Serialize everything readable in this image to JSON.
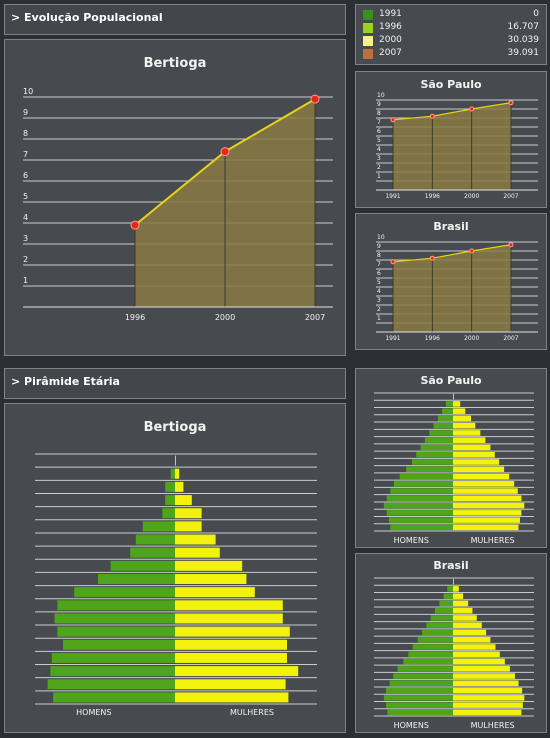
{
  "sections": {
    "evolucao": "> Evolução Populacional",
    "piramide": "> Pirâmide Etária"
  },
  "legend": [
    {
      "year": "1991",
      "value": "0",
      "color": "#3a8f1f"
    },
    {
      "year": "1996",
      "value": "16.707",
      "color": "#9ad41a"
    },
    {
      "year": "2000",
      "value": "30.039",
      "color": "#f5f28a"
    },
    {
      "year": "2007",
      "value": "39.091",
      "color": "#b8703d"
    }
  ],
  "colors": {
    "area": "#8a7a43",
    "line": "#e6d21a",
    "marker": "#e8261a",
    "homens": "#4ea51a",
    "mulheres": "#f2f20d"
  },
  "chart_data": [
    {
      "type": "area",
      "title": "Bertioga",
      "categories": [
        "1996",
        "2000",
        "2007"
      ],
      "values": [
        3.9,
        7.4,
        9.9
      ],
      "ylim": [
        0,
        10
      ],
      "yticks": [
        "1",
        "2",
        "3",
        "4",
        "5",
        "6",
        "7",
        "8",
        "9",
        "10"
      ]
    },
    {
      "type": "area",
      "title": "São Paulo",
      "categories": [
        "1991",
        "1996",
        "2000",
        "2007"
      ],
      "values": [
        7.8,
        8.2,
        9.0,
        9.7
      ],
      "ylim": [
        0,
        10
      ],
      "yticks": [
        "1",
        "2",
        "3",
        "4",
        "5",
        "6",
        "7",
        "8",
        "9",
        "10"
      ]
    },
    {
      "type": "area",
      "title": "Brasil",
      "categories": [
        "1991",
        "1996",
        "2000",
        "2007"
      ],
      "values": [
        7.8,
        8.2,
        9.0,
        9.7
      ],
      "ylim": [
        0,
        10
      ],
      "yticks": [
        "1",
        "2",
        "3",
        "4",
        "5",
        "6",
        "7",
        "8",
        "9",
        "10"
      ]
    },
    {
      "type": "bar",
      "title": "Bertioga",
      "xlabel_left": "HOMENS",
      "xlabel_right": "MULHERES",
      "homens": [
        0.0,
        0.03,
        0.07,
        0.07,
        0.09,
        0.23,
        0.28,
        0.32,
        0.46,
        0.55,
        0.72,
        0.84,
        0.86,
        0.84,
        0.8,
        0.88,
        0.89,
        0.91,
        0.87
      ],
      "mulheres": [
        0.0,
        0.03,
        0.06,
        0.12,
        0.19,
        0.19,
        0.29,
        0.32,
        0.48,
        0.51,
        0.57,
        0.77,
        0.77,
        0.82,
        0.8,
        0.8,
        0.88,
        0.79,
        0.81
      ]
    },
    {
      "type": "bar",
      "title": "São Paulo",
      "xlabel_left": "HOMENS",
      "xlabel_right": "MULHERES",
      "homens": [
        0.0,
        0.1,
        0.15,
        0.21,
        0.27,
        0.33,
        0.39,
        0.45,
        0.51,
        0.57,
        0.65,
        0.74,
        0.82,
        0.87,
        0.92,
        0.96,
        0.92,
        0.89,
        0.87
      ],
      "mulheres": [
        0.0,
        0.1,
        0.17,
        0.25,
        0.31,
        0.38,
        0.45,
        0.52,
        0.58,
        0.64,
        0.71,
        0.78,
        0.85,
        0.9,
        0.95,
        0.99,
        0.95,
        0.93,
        0.91
      ]
    },
    {
      "type": "bar",
      "title": "Brasil",
      "xlabel_left": "HOMENS",
      "xlabel_right": "MULHERES",
      "homens": [
        0.0,
        0.08,
        0.13,
        0.19,
        0.25,
        0.31,
        0.37,
        0.43,
        0.49,
        0.56,
        0.62,
        0.69,
        0.77,
        0.83,
        0.88,
        0.93,
        0.96,
        0.93,
        0.91
      ],
      "mulheres": [
        0.0,
        0.08,
        0.14,
        0.21,
        0.27,
        0.33,
        0.4,
        0.46,
        0.52,
        0.59,
        0.65,
        0.72,
        0.79,
        0.86,
        0.91,
        0.96,
        0.99,
        0.97,
        0.95
      ]
    }
  ]
}
